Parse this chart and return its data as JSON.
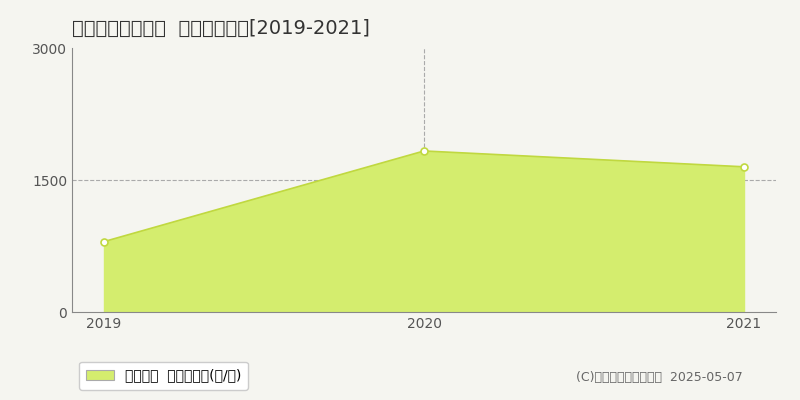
{
  "title": "入間郡越生町黒山  林地価格推移[2019-2021]",
  "years": [
    2019,
    2020,
    2021
  ],
  "values": [
    800,
    1830,
    1650
  ],
  "ylim": [
    0,
    3000
  ],
  "yticks": [
    0,
    1500,
    3000
  ],
  "fill_color": "#d4ed6e",
  "line_color": "#c0d840",
  "marker_color": "#ffffff",
  "marker_edge_color": "#c0d840",
  "background_color": "#f5f5f0",
  "grid_color": "#aaaaaa",
  "legend_label": "林地価格  平均坪単価(円/坪)",
  "copyright_text": "(C)土地価格ドットコム  2025-05-07",
  "title_fontsize": 14,
  "axis_fontsize": 10,
  "legend_fontsize": 10,
  "copyright_fontsize": 9
}
